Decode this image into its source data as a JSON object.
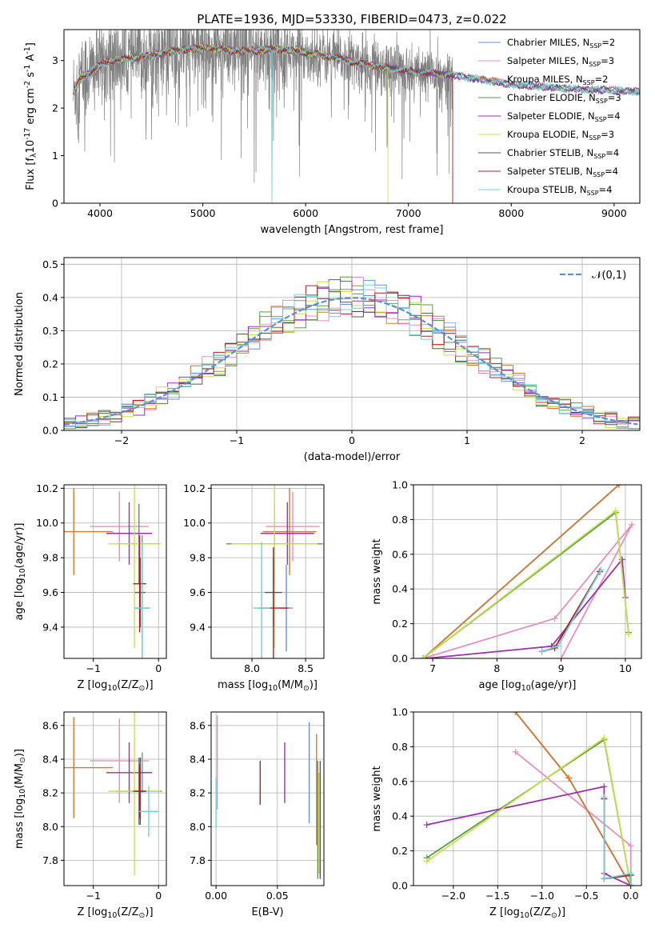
{
  "figure": {
    "title": "PLATE=1936, MJD=53330, FIBERID=0473, z=0.022"
  },
  "models": [
    {
      "name": "Chabrier MILES",
      "nssp": "2",
      "color": "#6b8fd8"
    },
    {
      "name": "Salpeter MILES",
      "nssp": "3",
      "color": "#e58fc0"
    },
    {
      "name": "Kroupa MILES",
      "nssp": "2",
      "color": "#d27a30"
    },
    {
      "name": "Chabrier ELODIE",
      "nssp": "3",
      "color": "#5a9a48"
    },
    {
      "name": "Salpeter ELODIE",
      "nssp": "4",
      "color": "#9a30b0"
    },
    {
      "name": "Kroupa ELODIE",
      "nssp": "3",
      "color": "#c8e050"
    },
    {
      "name": "Chabrier STELIB",
      "nssp": "4",
      "color": "#555555"
    },
    {
      "name": "Salpeter STELIB",
      "nssp": "4",
      "color": "#b02020"
    },
    {
      "name": "Kroupa STELIB",
      "nssp": "4",
      "color": "#70d0d8"
    }
  ],
  "chart_data": [
    {
      "id": "spectrum",
      "type": "line",
      "xlabel": "wavelength [Angstrom, rest frame]",
      "ylabel": "Flux [f$_\\lambda$10$^{-17}$ erg cm$^{-2}$ s$^{-1}$ A$^{-1}$]",
      "xlim": [
        3650,
        9250
      ],
      "ylim": [
        0,
        3.65
      ],
      "xticks": [
        4000,
        5000,
        6000,
        7000,
        8000,
        9000
      ],
      "yticks": [
        0,
        1,
        2,
        3
      ],
      "legend_position": "top-right",
      "data_color": "#808080",
      "data_range": [
        3740,
        7430
      ],
      "model_range": [
        3740,
        9250
      ],
      "continuum": {
        "x": [
          3740,
          3800,
          3900,
          4000,
          4100,
          4300,
          4500,
          4700,
          4900,
          5100,
          5300,
          5500,
          5700,
          5900,
          6200,
          6500,
          6800,
          7100,
          7400,
          7700,
          8000,
          8300,
          8600,
          8900,
          9200
        ],
        "y": [
          2.3,
          2.6,
          2.75,
          2.9,
          3.0,
          3.05,
          3.1,
          3.2,
          3.25,
          3.25,
          3.2,
          3.2,
          3.25,
          3.2,
          3.1,
          2.95,
          2.85,
          2.75,
          2.7,
          2.6,
          2.5,
          2.45,
          2.4,
          2.38,
          2.35
        ]
      }
    },
    {
      "id": "residuals",
      "type": "histogram",
      "xlabel": "(data-model)/error",
      "ylabel": "Normed distribution",
      "xlim": [
        -2.5,
        2.5
      ],
      "ylim": [
        0,
        0.52
      ],
      "xticks": [
        -2,
        -1,
        0,
        1,
        2
      ],
      "yticks": [
        0,
        0.1,
        0.2,
        0.3,
        0.4,
        0.5
      ],
      "bin_width": 0.1,
      "reference_label": "$\\mathcal{N}(0,1)$",
      "legend_position": "top-right"
    },
    {
      "id": "age-vs-z",
      "type": "errorbar",
      "xlabel": "Z [log$_{10}$(Z/Z$_\\odot$)]",
      "ylabel": "age  [log$_{10}$(age/yr)]",
      "xlim": [
        -1.45,
        0.12
      ],
      "ylim": [
        9.22,
        10.22
      ],
      "xticks": [
        -1,
        0
      ],
      "yticks": [
        9.4,
        9.6,
        9.8,
        10.0,
        10.2
      ],
      "points": [
        {
          "model": 0,
          "x": -0.25,
          "xerr": 0.12,
          "y": 9.51,
          "yerr": 0.42
        },
        {
          "model": 1,
          "x": -0.6,
          "xerr": 0.45,
          "y": 9.98,
          "yerr": 0.2
        },
        {
          "model": 2,
          "x": -1.3,
          "xerr": 0.6,
          "y": 9.95,
          "yerr": 0.25
        },
        {
          "model": 3,
          "x": -0.3,
          "xerr": 0.33,
          "y": 9.88,
          "yerr": 0.23
        },
        {
          "model": 4,
          "x": -0.45,
          "xerr": 0.35,
          "y": 9.94,
          "yerr": 0.18
        },
        {
          "model": 5,
          "x": -0.37,
          "xerr": 0.4,
          "y": 9.88,
          "yerr": 0.6
        },
        {
          "model": 6,
          "x": -0.28,
          "xerr": 0.08,
          "y": 9.6,
          "yerr": 0.2
        },
        {
          "model": 7,
          "x": -0.29,
          "xerr": 0.1,
          "y": 9.65,
          "yerr": 0.28
        },
        {
          "model": 8,
          "x": -0.25,
          "xerr": 0.12,
          "y": 9.51,
          "yerr": 0.38
        }
      ]
    },
    {
      "id": "age-vs-mass",
      "type": "errorbar",
      "xlabel": "mass [log$_{10}$(M/M$_\\odot$)]",
      "ylabel": "",
      "xlim": [
        7.62,
        8.67
      ],
      "ylim": [
        9.22,
        10.22
      ],
      "xticks": [
        8.0,
        8.5
      ],
      "yticks": [
        9.4,
        9.6,
        9.8,
        10.0,
        10.2
      ],
      "points": [
        {
          "model": 0,
          "x": 8.32,
          "xerr": 0.06,
          "y": 9.51,
          "yerr": 0.25
        },
        {
          "model": 1,
          "x": 8.38,
          "xerr": 0.25,
          "y": 9.98,
          "yerr": 0.2
        },
        {
          "model": 2,
          "x": 8.35,
          "xerr": 0.25,
          "y": 9.95,
          "yerr": 0.25
        },
        {
          "model": 3,
          "x": 8.21,
          "xerr": 0.45,
          "y": 9.88,
          "yerr": 0.23
        },
        {
          "model": 4,
          "x": 8.33,
          "xerr": 0.25,
          "y": 9.94,
          "yerr": 0.18
        },
        {
          "model": 5,
          "x": 8.21,
          "xerr": 0.4,
          "y": 9.88,
          "yerr": 0.6
        },
        {
          "model": 6,
          "x": 8.2,
          "xerr": 0.08,
          "y": 9.6,
          "yerr": 0.2
        },
        {
          "model": 7,
          "x": 8.2,
          "xerr": 0.14,
          "y": 9.51,
          "yerr": 0.35
        },
        {
          "model": 8,
          "x": 8.09,
          "xerr": 0.08,
          "y": 9.51,
          "yerr": 0.38
        }
      ]
    },
    {
      "id": "weight-vs-age",
      "type": "line",
      "xlabel": "age  [log$_{10}$(age/yr)]",
      "ylabel": "mass weight",
      "xlim": [
        6.7,
        10.25
      ],
      "ylim": [
        0,
        1
      ],
      "xticks": [
        7,
        8,
        9,
        10
      ],
      "yticks": [
        0,
        0.2,
        0.4,
        0.6,
        0.8,
        1.0
      ],
      "series": [
        {
          "model": 0,
          "x": [
            6.85,
            9.9
          ],
          "y": [
            0,
            1.0
          ]
        },
        {
          "model": 1,
          "x": [
            6.85,
            8.9,
            10.1,
            9.0
          ],
          "y": [
            0,
            0.23,
            0.77,
            0.0
          ]
        },
        {
          "model": 2,
          "x": [
            6.85,
            9.9
          ],
          "y": [
            0,
            1.0
          ]
        },
        {
          "model": 3,
          "x": [
            6.85,
            9.85,
            10.05
          ],
          "y": [
            0,
            0.84,
            0.15
          ]
        },
        {
          "model": 4,
          "x": [
            6.9,
            8.85,
            9.95,
            10.0
          ],
          "y": [
            0,
            0.07,
            0.57,
            0.35
          ]
        },
        {
          "model": 5,
          "x": [
            6.85,
            9.85,
            10.05
          ],
          "y": [
            0,
            0.85,
            0.14
          ]
        },
        {
          "model": 6,
          "x": [
            8.7,
            8.9,
            9.6
          ],
          "y": [
            0.04,
            0.06,
            0.5
          ]
        },
        {
          "model": 7,
          "x": [
            8.7,
            8.9,
            9.6
          ],
          "y": [
            0.04,
            0.06,
            0.5
          ]
        },
        {
          "model": 8,
          "x": [
            8.7,
            8.95,
            9.62
          ],
          "y": [
            0.04,
            0.07,
            0.51
          ]
        }
      ]
    },
    {
      "id": "mass-vs-z",
      "type": "errorbar",
      "xlabel": "Z [log$_{10}$(Z/Z$_\\odot$)]",
      "ylabel": "mass [log$_{10}$(M/M$_\\odot$)]",
      "xlim": [
        -1.45,
        0.12
      ],
      "ylim": [
        7.65,
        8.68
      ],
      "xticks": [
        -1,
        0
      ],
      "yticks": [
        7.8,
        8.0,
        8.2,
        8.4,
        8.6
      ],
      "points": [
        {
          "model": 0,
          "x": -0.25,
          "xerr": 0.1,
          "y": 8.32,
          "yerr": 0.12
        },
        {
          "model": 1,
          "x": -0.6,
          "xerr": 0.45,
          "y": 8.39,
          "yerr": 0.25
        },
        {
          "model": 2,
          "x": -1.3,
          "xerr": 0.6,
          "y": 8.35,
          "yerr": 0.3
        },
        {
          "model": 3,
          "x": -0.3,
          "xerr": 0.35,
          "y": 8.21,
          "yerr": 0.2
        },
        {
          "model": 4,
          "x": -0.45,
          "xerr": 0.35,
          "y": 8.32,
          "yerr": 0.18
        },
        {
          "model": 5,
          "x": -0.37,
          "xerr": 0.4,
          "y": 8.21,
          "yerr": 0.5
        },
        {
          "model": 6,
          "x": -0.28,
          "xerr": 0.08,
          "y": 8.21,
          "yerr": 0.2
        },
        {
          "model": 7,
          "x": -0.29,
          "xerr": 0.1,
          "y": 8.21,
          "yerr": 0.16
        },
        {
          "model": 8,
          "x": -0.15,
          "xerr": 0.15,
          "y": 8.09,
          "yerr": 0.15
        }
      ]
    },
    {
      "id": "mass-vs-ebv",
      "type": "errorbar",
      "xlabel": "E(B-V)",
      "ylabel": "",
      "xlim": [
        -0.004,
        0.088
      ],
      "ylim": [
        7.65,
        8.68
      ],
      "xticks": [
        0.0,
        0.05
      ],
      "yticks": [
        7.8,
        8.0,
        8.2,
        8.4,
        8.6
      ],
      "points": [
        {
          "model": 0,
          "x": 0.076,
          "xerr": 0,
          "y": 8.32,
          "yerr": 0.3
        },
        {
          "model": 1,
          "x": 0.001,
          "xerr": 0,
          "y": 8.38,
          "yerr": 0.28
        },
        {
          "model": 2,
          "x": 0.082,
          "xerr": 0,
          "y": 8.22,
          "yerr": 0.33
        },
        {
          "model": 3,
          "x": 0.083,
          "xerr": 0,
          "y": 8.04,
          "yerr": 0.35
        },
        {
          "model": 4,
          "x": 0.056,
          "xerr": 0,
          "y": 8.32,
          "yerr": 0.18
        },
        {
          "model": 5,
          "x": 0.084,
          "xerr": 0,
          "y": 8.02,
          "yerr": 0.3
        },
        {
          "model": 6,
          "x": 0.085,
          "xerr": 0,
          "y": 8.04,
          "yerr": 0.35
        },
        {
          "model": 7,
          "x": 0.036,
          "xerr": 0,
          "y": 8.26,
          "yerr": 0.13
        },
        {
          "model": 8,
          "x": 0.0,
          "xerr": 0,
          "y": 8.14,
          "yerr": 0.15
        }
      ]
    },
    {
      "id": "weight-vs-z",
      "type": "line",
      "xlabel": "Z [log$_{10}$(Z/Z$_\\odot$)]",
      "ylabel": "mass weight",
      "xlim": [
        -2.45,
        0.12
      ],
      "ylim": [
        0,
        1
      ],
      "xticks": [
        -2.0,
        -1.5,
        -1.0,
        -0.5,
        0.0
      ],
      "yticks": [
        0,
        0.2,
        0.4,
        0.6,
        0.8,
        1.0
      ],
      "series": [
        {
          "model": 0,
          "x": [
            -1.3,
            -0.7,
            0.0
          ],
          "y": [
            1.0,
            0.62,
            0.0
          ]
        },
        {
          "model": 1,
          "x": [
            -1.3,
            0.0,
            0.0
          ],
          "y": [
            0.77,
            0.23,
            0.0
          ]
        },
        {
          "model": 2,
          "x": [
            -1.3,
            -0.7,
            0.0
          ],
          "y": [
            1.0,
            0.62,
            0.0
          ]
        },
        {
          "model": 3,
          "x": [
            -2.3,
            -0.3,
            0.0
          ],
          "y": [
            0.16,
            0.84,
            0.0
          ]
        },
        {
          "model": 4,
          "x": [
            -2.3,
            -0.3,
            -0.3,
            0.0
          ],
          "y": [
            0.35,
            0.57,
            0.07,
            0.0
          ]
        },
        {
          "model": 5,
          "x": [
            -2.3,
            -0.3,
            0.0
          ],
          "y": [
            0.14,
            0.85,
            0.0
          ]
        },
        {
          "model": 6,
          "x": [
            -0.3,
            -0.3,
            0.0,
            0.0
          ],
          "y": [
            0.5,
            0.04,
            0.06,
            0.0
          ]
        },
        {
          "model": 7,
          "x": [
            -0.3,
            -0.3,
            0.0,
            0.0
          ],
          "y": [
            0.5,
            0.04,
            0.06,
            0.0
          ]
        },
        {
          "model": 8,
          "x": [
            -0.3,
            -0.3,
            0.0,
            0.0
          ],
          "y": [
            0.51,
            0.04,
            0.07,
            0.0
          ]
        }
      ]
    }
  ]
}
